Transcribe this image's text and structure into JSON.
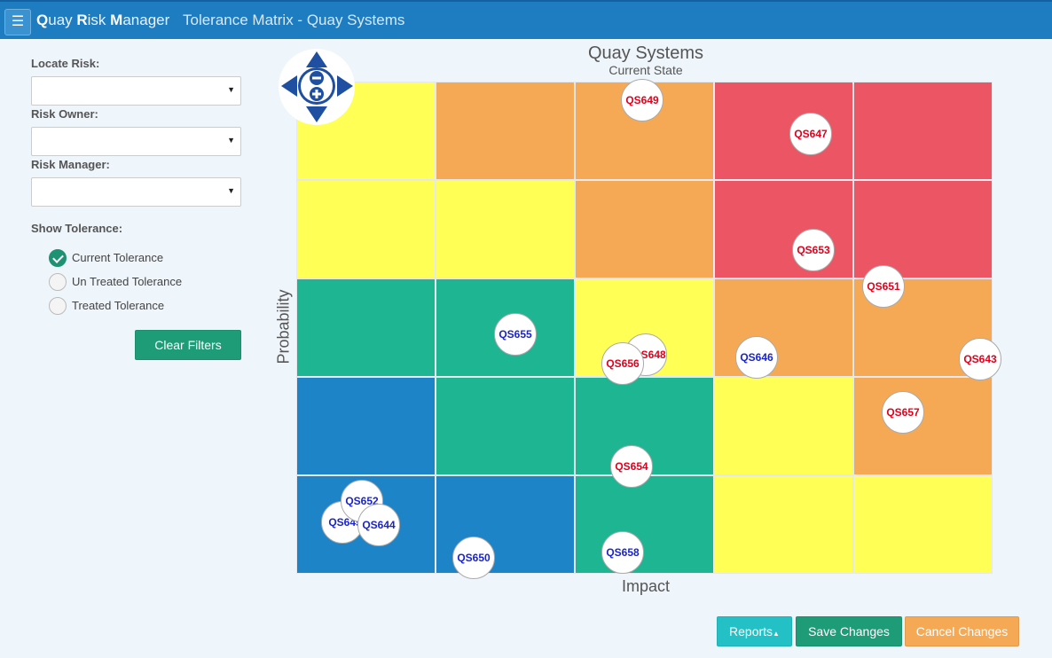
{
  "header": {
    "menu_icon": "hamburger-icon",
    "brand_parts": [
      {
        "initial": "Q",
        "rest": "uay "
      },
      {
        "initial": "R",
        "rest": "isk "
      },
      {
        "initial": "M",
        "rest": "anager"
      }
    ],
    "page_title": "Tolerance Matrix - Quay Systems"
  },
  "filters": {
    "locate_risk_label": "Locate Risk:",
    "locate_risk_value": "",
    "risk_owner_label": "Risk Owner:",
    "risk_owner_value": "",
    "risk_manager_label": "Risk Manager:",
    "risk_manager_value": "",
    "show_tolerance_label": "Show Tolerance:",
    "tolerance_options": [
      {
        "label": "Current Tolerance",
        "checked": true
      },
      {
        "label": "Un Treated Tolerance",
        "checked": false
      },
      {
        "label": "Treated Tolerance",
        "checked": false
      }
    ],
    "clear_filters_label": "Clear Filters"
  },
  "matrix": {
    "title": "Quay Systems",
    "subtitle": "Current State",
    "x_axis_label": "Impact",
    "y_axis_label": "Probability",
    "colors": {
      "yellow": "#ffff55",
      "orange": "#f6a954",
      "red": "#ec5664",
      "green": "#1eb593",
      "blue": "#1e84c8",
      "risk_red": "#e0001b",
      "risk_blue": "#1a24c8"
    },
    "cells": [
      [
        "yellow",
        "orange",
        "orange",
        "red",
        "red"
      ],
      [
        "yellow",
        "yellow",
        "orange",
        "red",
        "red"
      ],
      [
        "green",
        "green",
        "yellow",
        "orange",
        "orange"
      ],
      [
        "blue",
        "green",
        "green",
        "yellow",
        "orange"
      ],
      [
        "blue",
        "blue",
        "green",
        "yellow",
        "yellow"
      ]
    ],
    "risks": [
      {
        "id": "QS649",
        "color": "risk_red"
      },
      {
        "id": "QS647",
        "color": "risk_red"
      },
      {
        "id": "QS653",
        "color": "risk_red"
      },
      {
        "id": "QS651",
        "color": "risk_red"
      },
      {
        "id": "QS655",
        "color": "risk_blue"
      },
      {
        "id": "QS648",
        "color": "risk_red"
      },
      {
        "id": "QS656",
        "color": "risk_red"
      },
      {
        "id": "QS646",
        "color": "risk_blue"
      },
      {
        "id": "QS643",
        "color": "risk_red"
      },
      {
        "id": "QS657",
        "color": "risk_red"
      },
      {
        "id": "QS654",
        "color": "risk_red"
      },
      {
        "id": "QS645",
        "color": "risk_blue"
      },
      {
        "id": "QS652",
        "color": "risk_blue"
      },
      {
        "id": "QS644",
        "color": "risk_blue"
      },
      {
        "id": "QS650",
        "color": "risk_blue"
      },
      {
        "id": "QS658",
        "color": "risk_blue"
      }
    ],
    "nav_control": {
      "icons": [
        "arrow-up-icon",
        "arrow-down-icon",
        "arrow-left-icon",
        "arrow-right-icon",
        "zoom-out-icon",
        "zoom-in-icon"
      ]
    }
  },
  "footer": {
    "reports_label": "Reports",
    "save_label": "Save Changes",
    "cancel_label": "Cancel Changes"
  }
}
